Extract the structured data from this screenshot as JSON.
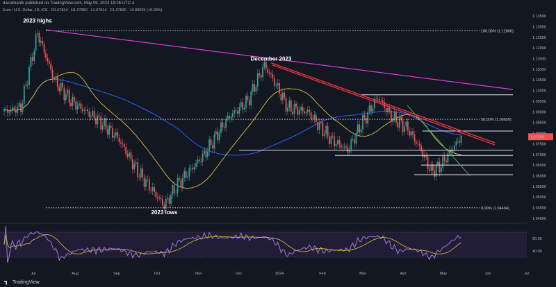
{
  "header": {
    "publisher": "dacolmanfx published on TradingView.com, May 09, 2024 19:26 UTC-4",
    "symbol": "Euro / U.S. Dollar, 1D, ICE",
    "ohlc": [
      "O1.07814",
      "H1.07860",
      "L1.07814",
      "C1.07830",
      "+0.00035 (+0.03%)"
    ]
  },
  "brand": "TradingView",
  "colors": {
    "background": "#131722",
    "up": "#26a69a",
    "down": "#ef5350",
    "sma_long": "#2962ff",
    "sma_mid": "#c9b33a",
    "trend_upper": "#d040d0",
    "trend_down": "#f23645",
    "trend_support": "#4caf50",
    "rsi": "#9c7cd8",
    "rsi_signal": "#c9b33a"
  },
  "chart_data": {
    "type": "candlestick",
    "instrument": "Euro / U.S. Dollar",
    "timeframe": "1D",
    "ylim": [
      1.039,
      1.136
    ],
    "y_ticks": [
      "1.13500",
      "1.13000",
      "1.12500",
      "1.12000",
      "1.11500",
      "1.11000",
      "1.10500",
      "1.10000",
      "1.09500",
      "1.09000",
      "1.08500",
      "1.08000",
      "1.07500",
      "1.07000",
      "1.06500",
      "1.06000",
      "1.05500",
      "1.05000",
      "1.04500",
      "1.04000"
    ],
    "x_ticks": [
      "Jul",
      "Aug",
      "Sep",
      "Oct",
      "Nov",
      "Dec",
      "2024",
      "Feb",
      "Mar",
      "Apr",
      "May",
      "Jun",
      "Jul"
    ],
    "last_price": "1.07830",
    "anchors": [
      {
        "t": 0,
        "v": 1.09
      },
      {
        "t": 10,
        "v": 1.092
      },
      {
        "t": 16,
        "v": 1.113
      },
      {
        "t": 20,
        "v": 1.127
      },
      {
        "t": 30,
        "v": 1.105
      },
      {
        "t": 40,
        "v": 1.095
      },
      {
        "t": 55,
        "v": 1.087
      },
      {
        "t": 68,
        "v": 1.078
      },
      {
        "t": 80,
        "v": 1.062
      },
      {
        "t": 92,
        "v": 1.05
      },
      {
        "t": 96,
        "v": 1.046
      },
      {
        "t": 104,
        "v": 1.056
      },
      {
        "t": 112,
        "v": 1.063
      },
      {
        "t": 120,
        "v": 1.07
      },
      {
        "t": 134,
        "v": 1.087
      },
      {
        "t": 146,
        "v": 1.095
      },
      {
        "t": 156,
        "v": 1.112
      },
      {
        "t": 162,
        "v": 1.104
      },
      {
        "t": 170,
        "v": 1.092
      },
      {
        "t": 182,
        "v": 1.09
      },
      {
        "t": 196,
        "v": 1.077
      },
      {
        "t": 206,
        "v": 1.072
      },
      {
        "t": 214,
        "v": 1.084
      },
      {
        "t": 224,
        "v": 1.097
      },
      {
        "t": 232,
        "v": 1.088
      },
      {
        "t": 242,
        "v": 1.082
      },
      {
        "t": 250,
        "v": 1.072
      },
      {
        "t": 256,
        "v": 1.062
      },
      {
        "t": 262,
        "v": 1.065
      },
      {
        "t": 268,
        "v": 1.072
      },
      {
        "t": 274,
        "v": 1.0783
      }
    ],
    "levels": [
      {
        "label": "100.00% (1.12806)",
        "value": 1.12806,
        "style": "dotted"
      },
      {
        "label": "50.00% (1.08650)",
        "value": 1.0865,
        "style": "dotted"
      },
      {
        "label": "0.00% (1.04494)",
        "value": 1.04494,
        "style": "dotted"
      }
    ],
    "horizontal_lines": [
      1.098,
      1.081,
      1.072,
      1.0695,
      1.065,
      1.0605
    ],
    "annotations": [
      {
        "text": "2023 highs",
        "t": 20,
        "v": 1.132
      },
      {
        "text": "December 2023",
        "t": 160,
        "v": 1.114
      },
      {
        "text": "2023 lows",
        "t": 96,
        "v": 1.042
      }
    ],
    "rsi": {
      "ylim": [
        20,
        80
      ],
      "ticks": [
        "60.00",
        "40.00"
      ],
      "levels": [
        70,
        30
      ]
    }
  }
}
